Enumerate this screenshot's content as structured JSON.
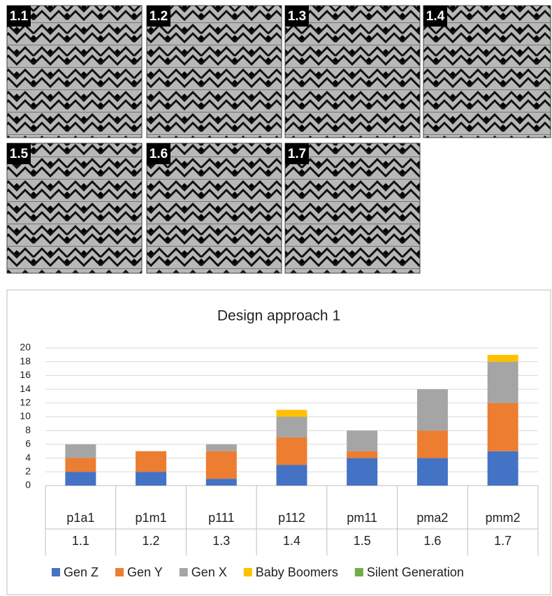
{
  "tiles": [
    "1.1",
    "1.2",
    "1.3",
    "1.4",
    "1.5",
    "1.6",
    "1.7"
  ],
  "chart_data": {
    "type": "stacked_bar",
    "title": "Design approach 1",
    "categories": [
      "p1a1",
      "p1m1",
      "p111",
      "p112",
      "pm11",
      "pma2",
      "pmm2"
    ],
    "category_codes": [
      "1.1",
      "1.2",
      "1.3",
      "1.4",
      "1.5",
      "1.6",
      "1.7"
    ],
    "series": [
      {
        "name": "Gen Z",
        "color": "#4472c4",
        "values": [
          2,
          2,
          1,
          3,
          4,
          4,
          5
        ]
      },
      {
        "name": "Gen Y",
        "color": "#ed7d31",
        "values": [
          2,
          3,
          4,
          4,
          1,
          4,
          7
        ]
      },
      {
        "name": "Gen X",
        "color": "#a5a5a5",
        "values": [
          2,
          0,
          1,
          3,
          3,
          6,
          6
        ]
      },
      {
        "name": "Baby Boomers",
        "color": "#ffc000",
        "values": [
          0,
          0,
          0,
          1,
          0,
          0,
          1
        ]
      },
      {
        "name": "Silent Generation",
        "color": "#70ad47",
        "values": [
          0,
          0,
          0,
          0,
          0,
          0,
          0
        ]
      }
    ],
    "ylim": [
      0,
      20
    ],
    "yticks": [
      0,
      2,
      4,
      6,
      8,
      10,
      12,
      14,
      16,
      18,
      20
    ],
    "grid": true,
    "legend": "bottom"
  }
}
